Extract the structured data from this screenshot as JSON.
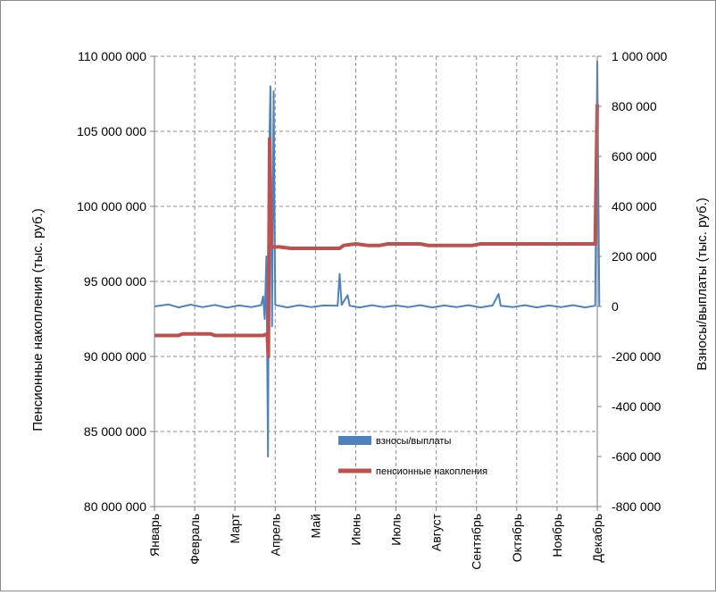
{
  "chart_data": {
    "type": "line",
    "title": "",
    "categories": [
      "Январь",
      "Февраль",
      "Март",
      "Апрель",
      "Май",
      "Июнь",
      "Июль",
      "Август",
      "Сентябрь",
      "Октябрь",
      "Ноябрь",
      "Декабрь"
    ],
    "x_ticks": [
      "Январь",
      "Февраль",
      "Март",
      "Апрель",
      "Май",
      "Июнь",
      "Июль",
      "Август",
      "Сентябрь",
      "Октябрь",
      "Ноябрь",
      "Декабрь"
    ],
    "ylabel_left": "Пенсионные накопления (тыс. руб.)",
    "ylabel_right": "Взносы/выплаты (тыс. руб.)",
    "ylim_left": [
      80000000,
      110000000
    ],
    "ylim_right": [
      -800000,
      1000000
    ],
    "yticks_left": [
      "80 000 000",
      "85 000 000",
      "90 000 000",
      "95 000 000",
      "100 000 000",
      "105 000 000",
      "110 000 000"
    ],
    "yticks_right": [
      "-800 000",
      "-600 000",
      "-400 000",
      "-200 000",
      "0",
      "200 000",
      "400 000",
      "600 000",
      "800 000",
      "1 000 000"
    ],
    "grid": true,
    "legend_position": "bottom-center",
    "series": [
      {
        "name": "взносы/выплаты",
        "axis": "right",
        "color": "#4f81bd",
        "points": [
          [
            0.0,
            0
          ],
          [
            0.35,
            8000
          ],
          [
            0.6,
            -4000
          ],
          [
            0.9,
            7000
          ],
          [
            1.2,
            -3000
          ],
          [
            1.5,
            6000
          ],
          [
            1.8,
            -5000
          ],
          [
            2.1,
            4000
          ],
          [
            2.4,
            -3000
          ],
          [
            2.65,
            5000
          ],
          [
            2.7,
            40000
          ],
          [
            2.74,
            -50000
          ],
          [
            2.78,
            200000
          ],
          [
            2.82,
            -600000
          ],
          [
            2.85,
            600000
          ],
          [
            2.88,
            880000
          ],
          [
            2.92,
            -80000
          ],
          [
            2.96,
            860000
          ],
          [
            3.0,
            6000
          ],
          [
            3.3,
            -4000
          ],
          [
            3.6,
            5000
          ],
          [
            3.9,
            -3000
          ],
          [
            4.2,
            4000
          ],
          [
            4.55,
            3000
          ],
          [
            4.6,
            130000
          ],
          [
            4.65,
            6000
          ],
          [
            4.8,
            45000
          ],
          [
            4.85,
            3000
          ],
          [
            5.1,
            -4000
          ],
          [
            5.4,
            5000
          ],
          [
            5.7,
            -3000
          ],
          [
            6.0,
            4000
          ],
          [
            6.3,
            -3000
          ],
          [
            6.6,
            5000
          ],
          [
            6.9,
            -4000
          ],
          [
            7.2,
            4000
          ],
          [
            7.5,
            -3000
          ],
          [
            7.8,
            5000
          ],
          [
            8.1,
            -4000
          ],
          [
            8.4,
            4000
          ],
          [
            8.55,
            50000
          ],
          [
            8.6,
            3000
          ],
          [
            8.9,
            -3000
          ],
          [
            9.2,
            5000
          ],
          [
            9.5,
            -4000
          ],
          [
            9.8,
            4000
          ],
          [
            10.1,
            -3000
          ],
          [
            10.4,
            5000
          ],
          [
            10.7,
            -4000
          ],
          [
            10.95,
            3000
          ],
          [
            11.0,
            980000
          ],
          [
            11.05,
            0
          ]
        ]
      },
      {
        "name": "пенсионные накопления",
        "axis": "left",
        "color": "#c0504d",
        "points": [
          [
            0.0,
            91400000
          ],
          [
            0.6,
            91400000
          ],
          [
            0.7,
            91500000
          ],
          [
            1.4,
            91500000
          ],
          [
            1.5,
            91400000
          ],
          [
            2.7,
            91400000
          ],
          [
            2.8,
            91500000
          ],
          [
            2.83,
            90000000
          ],
          [
            2.86,
            104500000
          ],
          [
            2.9,
            97300000
          ],
          [
            3.1,
            97300000
          ],
          [
            3.4,
            97200000
          ],
          [
            4.6,
            97200000
          ],
          [
            4.7,
            97400000
          ],
          [
            5.0,
            97500000
          ],
          [
            5.3,
            97400000
          ],
          [
            5.6,
            97400000
          ],
          [
            5.8,
            97500000
          ],
          [
            6.6,
            97500000
          ],
          [
            6.8,
            97400000
          ],
          [
            7.9,
            97400000
          ],
          [
            8.1,
            97500000
          ],
          [
            10.95,
            97500000
          ],
          [
            11.0,
            106800000
          ]
        ]
      }
    ]
  }
}
